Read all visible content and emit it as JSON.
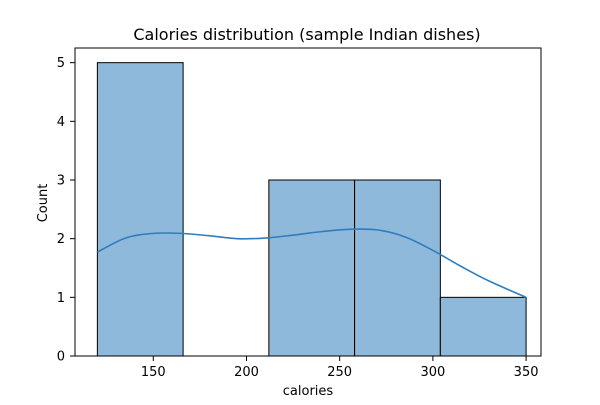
{
  "chart_data": {
    "type": "histogram",
    "title": "Calories distribution (sample Indian dishes)",
    "xlabel": "calories",
    "ylabel": "Count",
    "xlim": [
      108,
      358
    ],
    "ylim": [
      0,
      5.25
    ],
    "xticks": [
      150,
      200,
      250,
      300,
      350
    ],
    "yticks": [
      0,
      1,
      2,
      3,
      4,
      5
    ],
    "bins": [
      {
        "x0": 120,
        "x1": 166,
        "count": 5
      },
      {
        "x0": 166,
        "x1": 212,
        "count": 0
      },
      {
        "x0": 212,
        "x1": 258,
        "count": 3
      },
      {
        "x0": 258,
        "x1": 304,
        "count": 3
      },
      {
        "x0": 304,
        "x1": 350,
        "count": 1
      }
    ],
    "kde": {
      "x": [
        120,
        135,
        150,
        165,
        180,
        195,
        210,
        225,
        240,
        255,
        270,
        285,
        300,
        315,
        330,
        350
      ],
      "y": [
        1.77,
        2.01,
        2.09,
        2.09,
        2.05,
        2.0,
        2.01,
        2.06,
        2.12,
        2.16,
        2.15,
        2.03,
        1.8,
        1.53,
        1.28,
        1.0
      ]
    },
    "bar_color": "#8fb9da",
    "bar_edge_color": "#000000",
    "kde_color": "#2f7cbf",
    "grid": false,
    "legend": "none"
  }
}
